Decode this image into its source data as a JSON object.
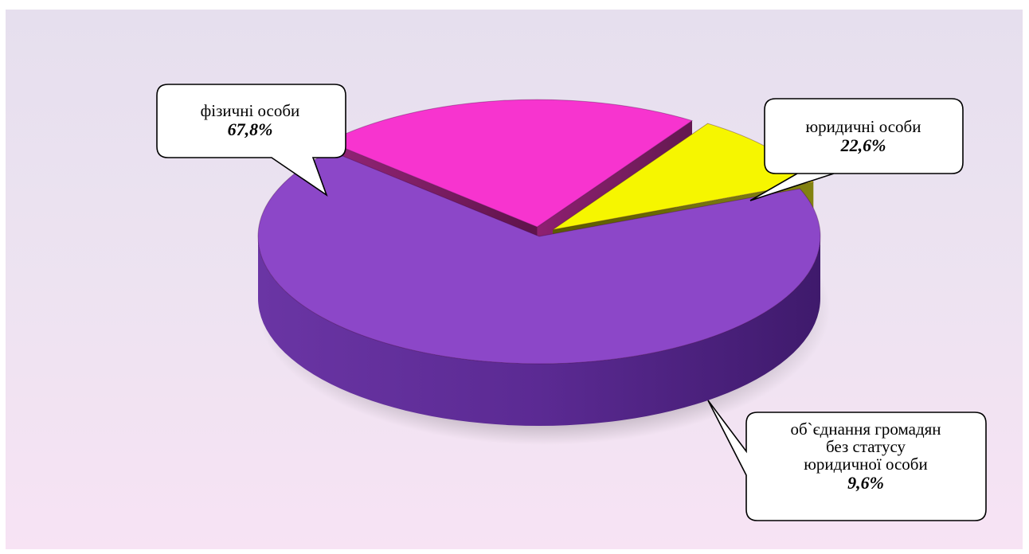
{
  "chart_data": {
    "type": "pie",
    "style": "3d exploded pie with callout labels",
    "slices": [
      {
        "label": "фізичні особи",
        "value": 67.8,
        "value_text": "67,8%",
        "color": "#8c47c8"
      },
      {
        "label": "юридичні особи",
        "value": 22.6,
        "value_text": "22,6%",
        "color": "#f734cf"
      },
      {
        "label": "об`єднання громадян без статусу юридичної особи",
        "value": 9.6,
        "value_text": "9,6%",
        "color": "#f6f600"
      }
    ]
  },
  "callouts": {
    "fiz": {
      "lines": [
        "фізичні особи"
      ],
      "value": "67,8%"
    },
    "yur": {
      "lines": [
        "юридичні особи"
      ],
      "value": "22,6%"
    },
    "obj": {
      "lines": [
        "об`єднання громадян",
        "без статусу",
        "юридичної особи"
      ],
      "value": "9,6%"
    }
  }
}
